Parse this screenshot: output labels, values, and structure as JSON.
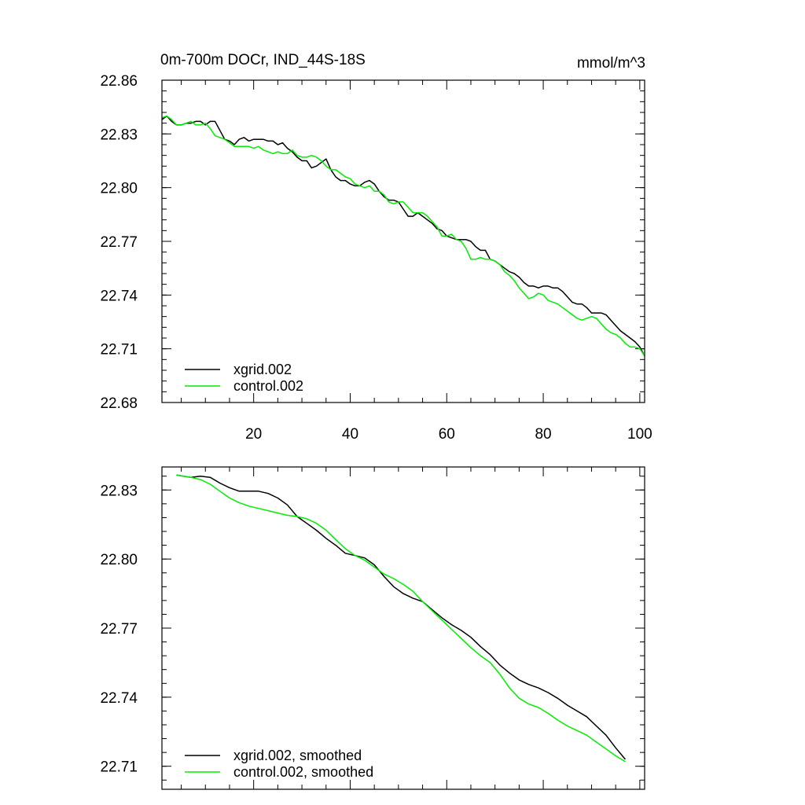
{
  "chart_data": [
    {
      "type": "line",
      "title": "0m-700m DOCr, IND_44S-18S",
      "units": "mmol/m^3",
      "xlim": [
        1,
        101
      ],
      "ylim": [
        22.68,
        22.86
      ],
      "xticks": [
        20,
        40,
        60,
        80,
        100
      ],
      "xtick_labels": [
        "20",
        "40",
        "60",
        "80",
        "100"
      ],
      "yticks": [
        22.68,
        22.71,
        22.74,
        22.77,
        22.8,
        22.83,
        22.86
      ],
      "ytick_labels": [
        "22.68",
        "22.71",
        "22.74",
        "22.77",
        "22.80",
        "22.83",
        "22.86"
      ],
      "legend_position": "bottom-left",
      "series": [
        {
          "name": "xgrid.002",
          "color": "#000000",
          "x_start": 1,
          "values": [
            22.838,
            22.84,
            22.837,
            22.835,
            22.835,
            22.836,
            22.836,
            22.837,
            22.837,
            22.835,
            22.837,
            22.837,
            22.832,
            22.827,
            22.826,
            22.824,
            22.827,
            22.828,
            22.826,
            22.827,
            22.827,
            22.827,
            22.826,
            22.826,
            22.824,
            22.825,
            22.822,
            22.82,
            22.817,
            22.815,
            22.815,
            22.811,
            22.812,
            22.814,
            22.816,
            22.81,
            22.806,
            22.804,
            22.804,
            22.802,
            22.801,
            22.801,
            22.803,
            22.804,
            22.802,
            22.798,
            22.795,
            22.793,
            22.793,
            22.792,
            22.788,
            22.784,
            22.784,
            22.786,
            22.784,
            22.782,
            22.78,
            22.777,
            22.776,
            22.773,
            22.772,
            22.771,
            22.771,
            22.771,
            22.77,
            22.767,
            22.765,
            22.765,
            22.76,
            22.759,
            22.757,
            22.755,
            22.753,
            22.752,
            22.75,
            22.747,
            22.745,
            22.745,
            22.744,
            22.745,
            22.745,
            22.744,
            22.744,
            22.742,
            22.739,
            22.736,
            22.735,
            22.735,
            22.733,
            22.73,
            22.73,
            22.73,
            22.729,
            22.726,
            22.723,
            22.72,
            22.718,
            22.716,
            22.714,
            22.711,
            22.706
          ]
        },
        {
          "name": "control.002",
          "color": "#00ee00",
          "x_start": 1,
          "values": [
            22.839,
            22.84,
            22.838,
            22.835,
            22.835,
            22.836,
            22.837,
            22.835,
            22.835,
            22.836,
            22.833,
            22.829,
            22.828,
            22.827,
            22.825,
            22.823,
            22.823,
            22.823,
            22.823,
            22.822,
            22.823,
            22.821,
            22.82,
            22.819,
            22.82,
            22.819,
            22.819,
            22.821,
            22.818,
            22.817,
            22.817,
            22.818,
            22.817,
            22.815,
            22.812,
            22.81,
            22.81,
            22.808,
            22.806,
            22.805,
            22.802,
            22.801,
            22.8,
            22.801,
            22.798,
            22.798,
            22.796,
            22.792,
            22.791,
            22.792,
            22.792,
            22.789,
            22.786,
            22.786,
            22.786,
            22.784,
            22.781,
            22.778,
            22.773,
            22.773,
            22.774,
            22.771,
            22.77,
            22.766,
            22.76,
            22.76,
            22.761,
            22.76,
            22.76,
            22.759,
            22.757,
            22.753,
            22.751,
            22.748,
            22.744,
            22.741,
            22.738,
            22.739,
            22.741,
            22.74,
            22.737,
            22.736,
            22.735,
            22.733,
            22.731,
            22.729,
            22.727,
            22.726,
            22.727,
            22.728,
            22.727,
            22.724,
            22.721,
            22.719,
            22.718,
            22.716,
            22.713,
            22.711,
            22.711,
            22.71,
            22.706
          ]
        }
      ]
    },
    {
      "type": "line",
      "title": "",
      "xlim": [
        1,
        101
      ],
      "ylim": [
        22.7,
        22.84
      ],
      "yticks": [
        22.71,
        22.74,
        22.77,
        22.8,
        22.83
      ],
      "ytick_labels": [
        "22.71",
        "22.74",
        "22.77",
        "22.80",
        "22.83"
      ],
      "legend_position": "bottom-left",
      "series": [
        {
          "name": "xgrid.002, smoothed",
          "color": "#000000",
          "x": [
            4,
            7,
            9,
            11,
            13,
            15,
            17,
            19,
            21,
            23,
            25,
            27,
            29,
            31,
            33,
            35,
            37,
            39,
            41,
            43,
            45,
            47,
            49,
            51,
            53,
            55,
            57,
            59,
            61,
            63,
            65,
            67,
            69,
            71,
            73,
            75,
            77,
            79,
            81,
            83,
            85,
            87,
            89,
            91,
            93,
            95,
            97
          ],
          "values": [
            22.8365,
            22.8355,
            22.836,
            22.8355,
            22.833,
            22.831,
            22.8295,
            22.8295,
            22.8295,
            22.8285,
            22.8265,
            22.8235,
            22.8185,
            22.8155,
            22.8125,
            22.809,
            22.806,
            22.8025,
            22.8015,
            22.8005,
            22.7975,
            22.7925,
            22.788,
            22.785,
            22.783,
            22.7815,
            22.778,
            22.7745,
            22.7715,
            22.769,
            22.766,
            22.762,
            22.7585,
            22.754,
            22.7505,
            22.7475,
            22.7455,
            22.744,
            22.742,
            22.7395,
            22.7365,
            22.734,
            22.7315,
            22.7275,
            22.7235,
            22.718,
            22.713
          ]
        },
        {
          "name": "control.002, smoothed",
          "color": "#00ee00",
          "x": [
            4,
            7,
            9,
            11,
            13,
            15,
            17,
            19,
            21,
            23,
            25,
            27,
            29,
            31,
            33,
            35,
            37,
            39,
            41,
            43,
            45,
            47,
            49,
            51,
            53,
            55,
            57,
            59,
            61,
            63,
            65,
            67,
            69,
            71,
            73,
            75,
            77,
            79,
            81,
            83,
            85,
            87,
            89,
            91,
            93,
            95,
            97
          ],
          "values": [
            22.8365,
            22.8355,
            22.8345,
            22.8325,
            22.8295,
            22.8265,
            22.8245,
            22.823,
            22.822,
            22.821,
            22.82,
            22.819,
            22.8185,
            22.8175,
            22.8155,
            22.8125,
            22.8085,
            22.8045,
            22.8015,
            22.7995,
            22.7965,
            22.7935,
            22.7915,
            22.789,
            22.786,
            22.7815,
            22.7775,
            22.7735,
            22.7695,
            22.7655,
            22.7615,
            22.758,
            22.755,
            22.75,
            22.744,
            22.7395,
            22.737,
            22.7355,
            22.733,
            22.73,
            22.7275,
            22.7255,
            22.7235,
            22.7205,
            22.7175,
            22.7145,
            22.712
          ]
        }
      ]
    }
  ]
}
